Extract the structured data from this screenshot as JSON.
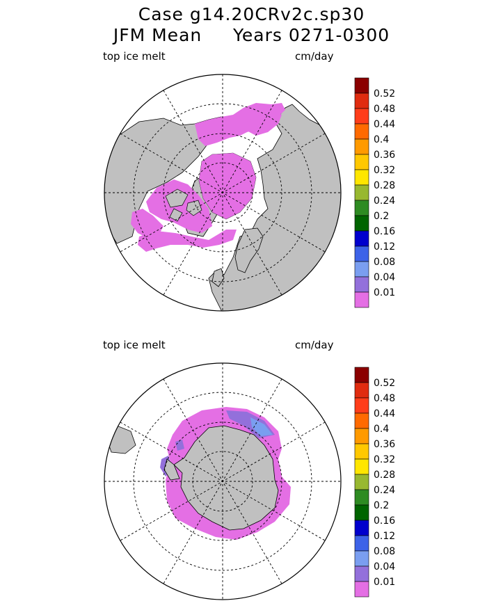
{
  "header": {
    "case_line": "Case g14.20CRv2c.sp30",
    "period_line": "JFM Mean     Years 0271-0300"
  },
  "panels": [
    {
      "id": "north",
      "variable_label": "top ice melt",
      "units_label": "cm/day"
    },
    {
      "id": "south",
      "variable_label": "top ice melt",
      "units_label": "cm/day"
    }
  ],
  "colorbar": {
    "levels": [
      "0.52",
      "0.48",
      "0.44",
      "0.4",
      "0.36",
      "0.32",
      "0.28",
      "0.24",
      "0.2",
      "0.16",
      "0.12",
      "0.08",
      "0.04",
      "0.01"
    ],
    "colors": [
      "#8b0000",
      "#e02c10",
      "#ff3d1a",
      "#ff6a00",
      "#ff9a00",
      "#ffc800",
      "#ffe600",
      "#98b830",
      "#2e8b22",
      "#006400",
      "#0000cd",
      "#3d63e8",
      "#7a9ef0",
      "#9370db",
      "#e46fe4"
    ]
  },
  "palette": {
    "land": "#c0c0c0",
    "ocean": "#ffffff",
    "ice_melt_low": "#e46fe4",
    "ice_melt_mid": "#9370db",
    "ice_melt_high": "#7a9ef0"
  }
}
